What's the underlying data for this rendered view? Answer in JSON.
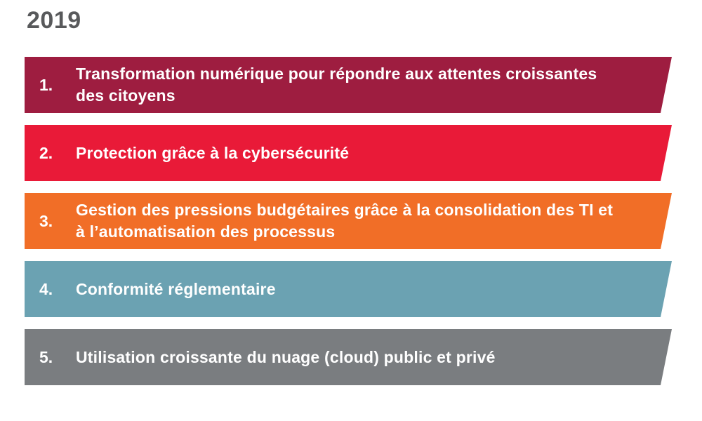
{
  "page": {
    "title": "2019",
    "title_color": "#58595B",
    "background_color": "#ffffff",
    "text_color_on_banners": "#ffffff"
  },
  "banners": {
    "items": [
      {
        "number": "1.",
        "label": "Transformation numérique pour répondre aux attentes croissantes des citoyens",
        "color": "#9E1D40"
      },
      {
        "number": "2.",
        "label": "Protection grâce à la cybersécurité",
        "color": "#E91A38"
      },
      {
        "number": "3.",
        "label": "Gestion des pressions budgétaires grâce à la consolidation des TI et à l’automatisation des processus",
        "color": "#F16E27"
      },
      {
        "number": "4.",
        "label": "Conformité réglementaire",
        "color": "#6BA2B2"
      },
      {
        "number": "5.",
        "label": "Utilisation croissante du nuage (cloud) public et privé",
        "color": "#7A7D80"
      }
    ]
  }
}
